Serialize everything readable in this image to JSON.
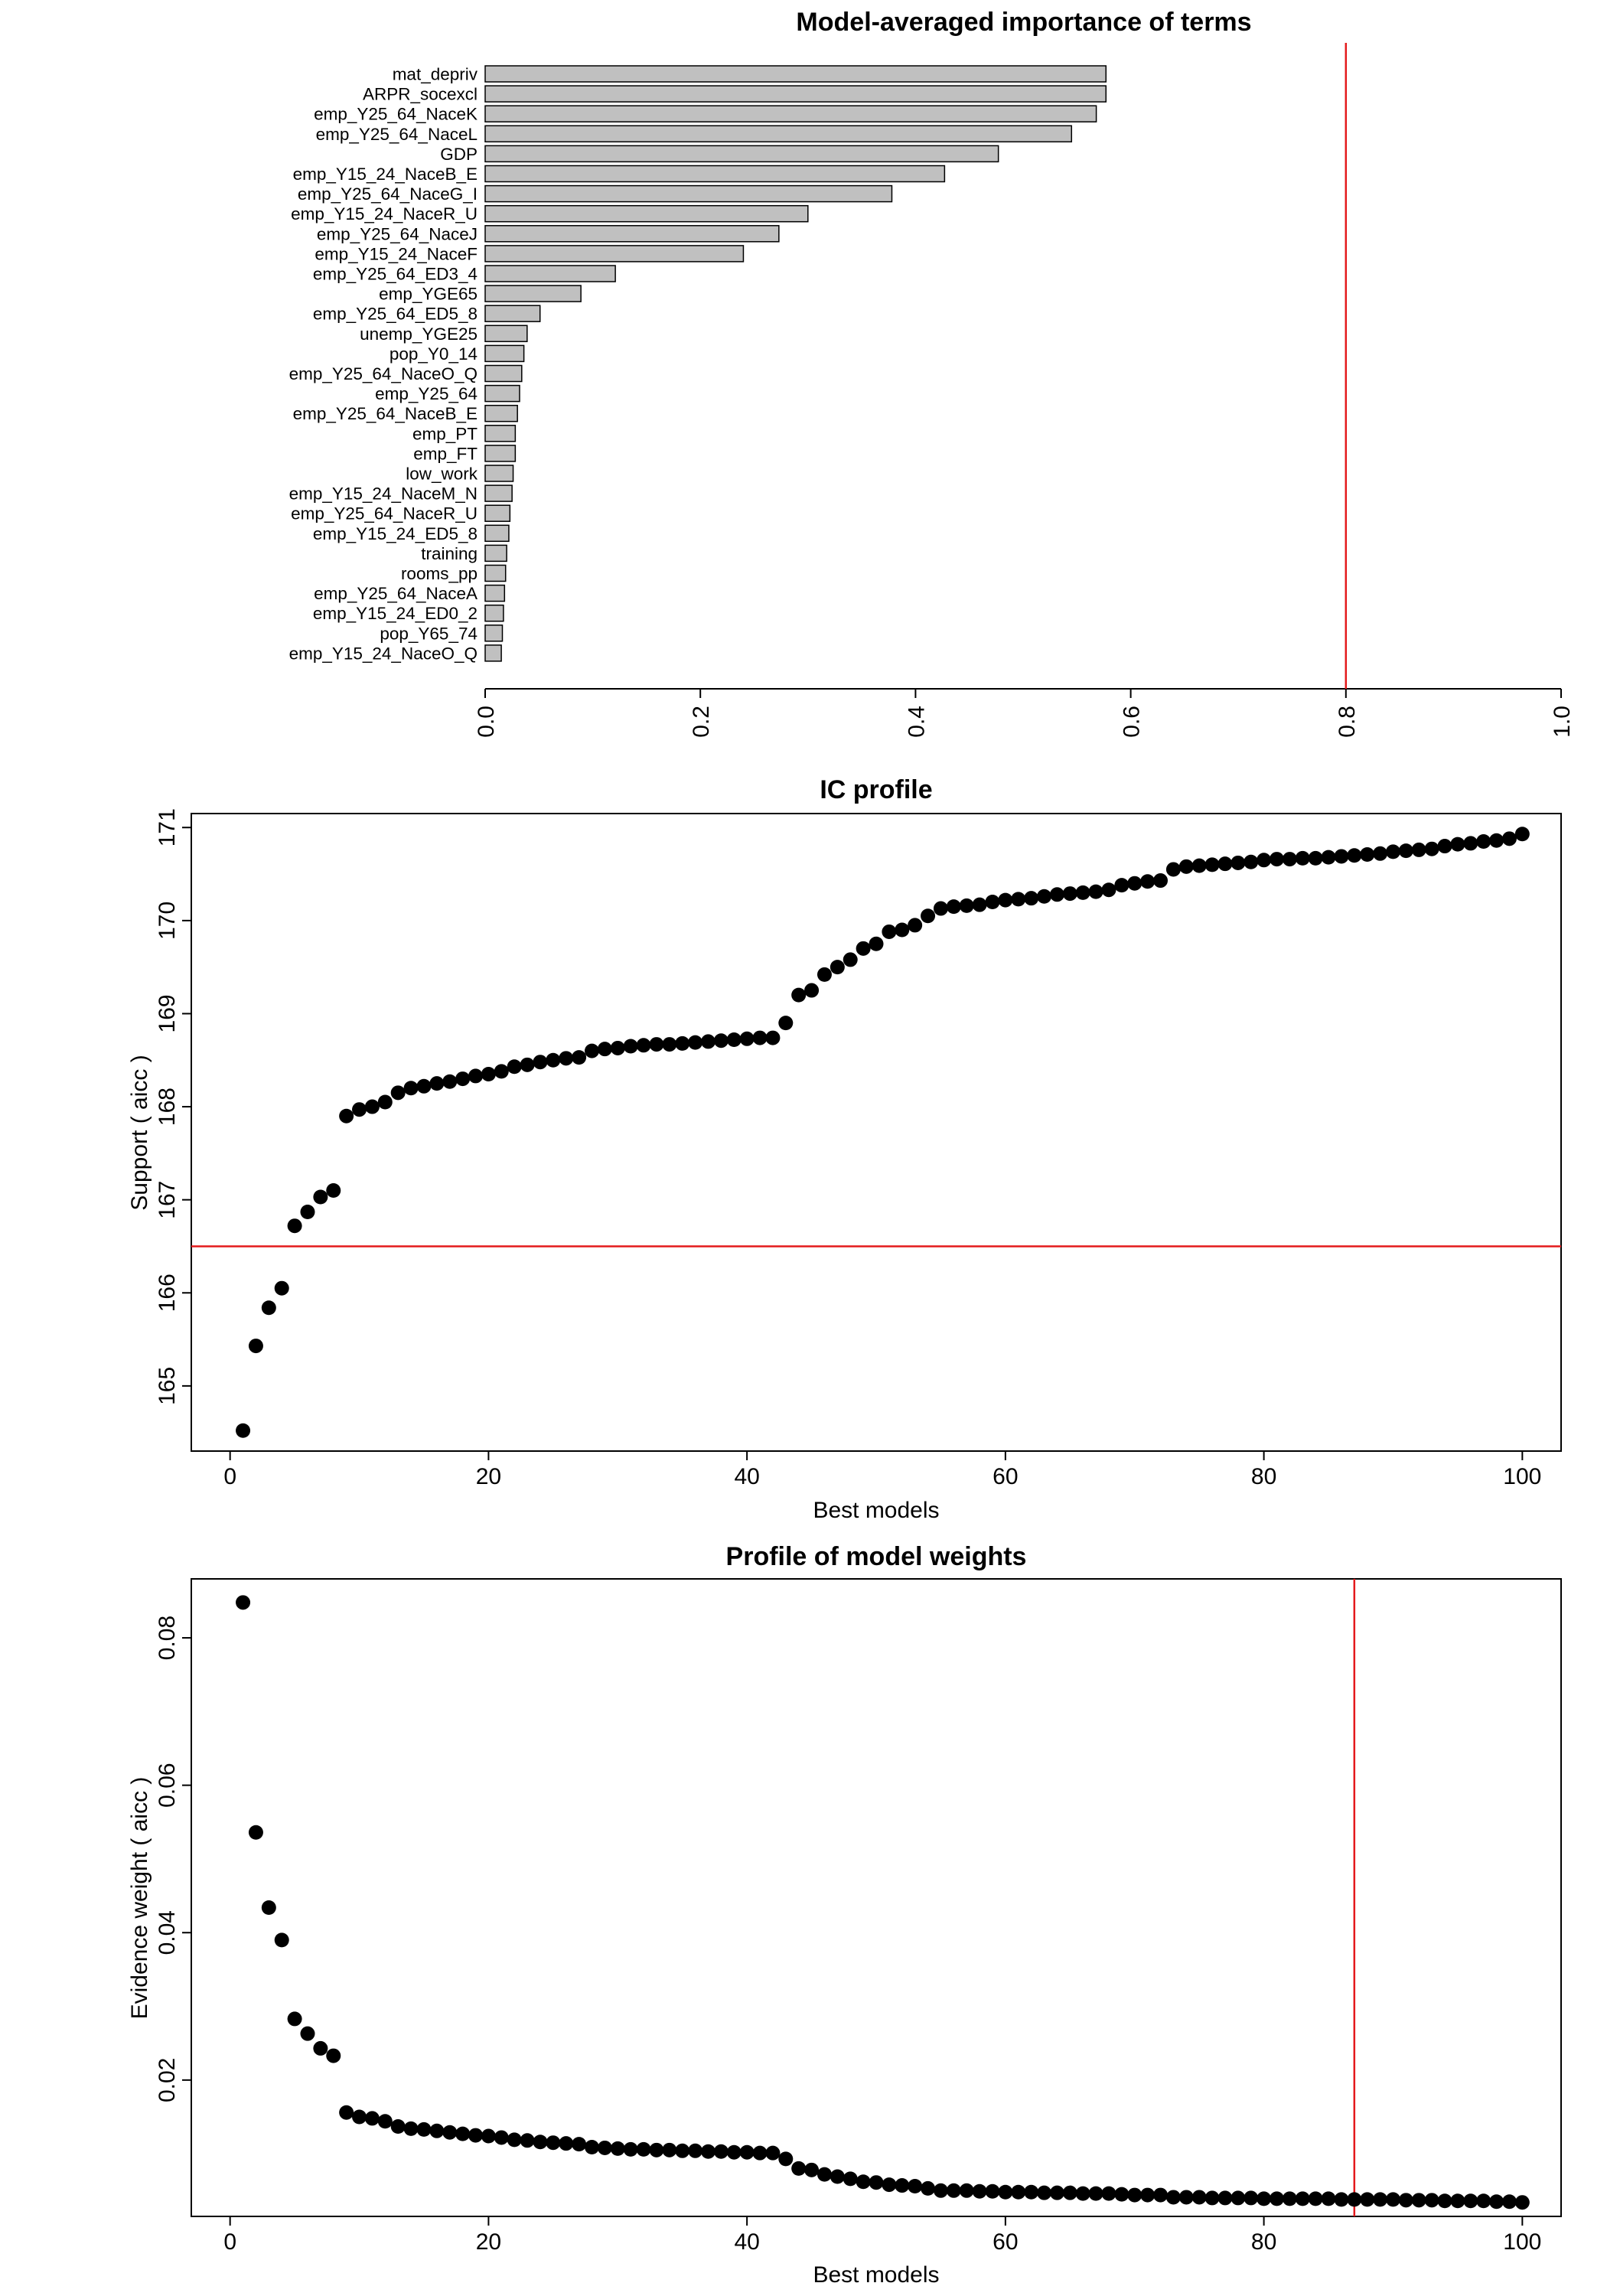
{
  "colors": {
    "bar_fill": "#c0c0c0",
    "point": "#000000",
    "ref_line": "#e41a1c",
    "axis": "#000000"
  },
  "chart_data": [
    {
      "type": "bar",
      "orientation": "horizontal",
      "title": "Model-averaged importance of terms",
      "xlabel": "",
      "ylabel": "",
      "xlim": [
        0,
        1
      ],
      "ticks": [
        "0.0",
        "0.2",
        "0.4",
        "0.6",
        "0.8",
        "1.0"
      ],
      "reference_line": {
        "axis": "x",
        "value": 0.8
      },
      "grid": false,
      "categories": [
        "mat_depriv",
        "ARPR_socexcl",
        "emp_Y25_64_NaceK",
        "emp_Y25_64_NaceL",
        "GDP",
        "emp_Y15_24_NaceB_E",
        "emp_Y25_64_NaceG_I",
        "emp_Y15_24_NaceR_U",
        "emp_Y25_64_NaceJ",
        "emp_Y15_24_NaceF",
        "emp_Y25_64_ED3_4",
        "emp_YGE65",
        "emp_Y25_64_ED5_8",
        "unemp_YGE25",
        "pop_Y0_14",
        "emp_Y25_64_NaceO_Q",
        "emp_Y25_64",
        "emp_Y25_64_NaceB_E",
        "emp_PT",
        "emp_FT",
        "low_work",
        "emp_Y15_24_NaceM_N",
        "emp_Y25_64_NaceR_U",
        "emp_Y15_24_ED5_8",
        "training",
        "rooms_pp",
        "emp_Y25_64_NaceA",
        "emp_Y15_24_ED0_2",
        "pop_Y65_74",
        "emp_Y15_24_NaceO_Q"
      ],
      "values": [
        0.577,
        0.577,
        0.568,
        0.545,
        0.477,
        0.427,
        0.378,
        0.3,
        0.273,
        0.24,
        0.121,
        0.089,
        0.051,
        0.039,
        0.036,
        0.034,
        0.032,
        0.03,
        0.028,
        0.028,
        0.026,
        0.025,
        0.023,
        0.022,
        0.02,
        0.019,
        0.018,
        0.017,
        0.016,
        0.015
      ]
    },
    {
      "type": "scatter",
      "title": "IC profile",
      "xlabel": "Best models",
      "ylabel": "Support ( aicc )",
      "xlim": [
        -3,
        103
      ],
      "ylim": [
        164.3,
        171.15
      ],
      "xticks": [
        0,
        20,
        40,
        60,
        80,
        100
      ],
      "yticks": [
        165,
        166,
        167,
        168,
        169,
        170,
        171
      ],
      "reference_line": {
        "axis": "y",
        "value": 166.5
      },
      "grid": false,
      "x": [
        1,
        2,
        3,
        4,
        5,
        6,
        7,
        8,
        9,
        10,
        11,
        12,
        13,
        14,
        15,
        16,
        17,
        18,
        19,
        20,
        21,
        22,
        23,
        24,
        25,
        26,
        27,
        28,
        29,
        30,
        31,
        32,
        33,
        34,
        35,
        36,
        37,
        38,
        39,
        40,
        41,
        42,
        43,
        44,
        45,
        46,
        47,
        48,
        49,
        50,
        51,
        52,
        53,
        54,
        55,
        56,
        57,
        58,
        59,
        60,
        61,
        62,
        63,
        64,
        65,
        66,
        67,
        68,
        69,
        70,
        71,
        72,
        73,
        74,
        75,
        76,
        77,
        78,
        79,
        80,
        81,
        82,
        83,
        84,
        85,
        86,
        87,
        88,
        89,
        90,
        91,
        92,
        93,
        94,
        95,
        96,
        97,
        98,
        99,
        100
      ],
      "y": [
        164.52,
        165.43,
        165.84,
        166.05,
        166.72,
        166.87,
        167.03,
        167.1,
        167.9,
        167.97,
        168.0,
        168.05,
        168.15,
        168.2,
        168.22,
        168.25,
        168.27,
        168.3,
        168.33,
        168.35,
        168.38,
        168.43,
        168.45,
        168.48,
        168.5,
        168.52,
        168.53,
        168.6,
        168.62,
        168.63,
        168.65,
        168.66,
        168.67,
        168.67,
        168.68,
        168.69,
        168.7,
        168.71,
        168.72,
        168.73,
        168.74,
        168.74,
        168.9,
        169.2,
        169.25,
        169.42,
        169.5,
        169.58,
        169.7,
        169.75,
        169.88,
        169.9,
        169.95,
        170.05,
        170.13,
        170.15,
        170.16,
        170.17,
        170.2,
        170.22,
        170.23,
        170.24,
        170.26,
        170.28,
        170.29,
        170.3,
        170.31,
        170.33,
        170.38,
        170.4,
        170.42,
        170.43,
        170.55,
        170.58,
        170.59,
        170.6,
        170.61,
        170.62,
        170.63,
        170.65,
        170.66,
        170.66,
        170.67,
        170.67,
        170.68,
        170.69,
        170.7,
        170.71,
        170.72,
        170.74,
        170.75,
        170.76,
        170.77,
        170.8,
        170.82,
        170.83,
        170.85,
        170.86,
        170.88,
        170.93
      ]
    },
    {
      "type": "scatter",
      "title": "Profile of model weights",
      "xlabel": "Best models",
      "ylabel": "Evidence weight ( aicc )",
      "xlim": [
        -3,
        103
      ],
      "ylim": [
        0.0015,
        0.088
      ],
      "xticks": [
        0,
        20,
        40,
        60,
        80,
        100
      ],
      "yticks": [
        0.02,
        0.04,
        0.06,
        0.08
      ],
      "reference_line": {
        "axis": "x",
        "value": 87
      },
      "grid": false,
      "x": [
        1,
        2,
        3,
        4,
        5,
        6,
        7,
        8,
        9,
        10,
        11,
        12,
        13,
        14,
        15,
        16,
        17,
        18,
        19,
        20,
        21,
        22,
        23,
        24,
        25,
        26,
        27,
        28,
        29,
        30,
        31,
        32,
        33,
        34,
        35,
        36,
        37,
        38,
        39,
        40,
        41,
        42,
        43,
        44,
        45,
        46,
        47,
        48,
        49,
        50,
        51,
        52,
        53,
        54,
        55,
        56,
        57,
        58,
        59,
        60,
        61,
        62,
        63,
        64,
        65,
        66,
        67,
        68,
        69,
        70,
        71,
        72,
        73,
        74,
        75,
        76,
        77,
        78,
        79,
        80,
        81,
        82,
        83,
        84,
        85,
        86,
        87,
        88,
        89,
        90,
        91,
        92,
        93,
        94,
        95,
        96,
        97,
        98,
        99,
        100
      ],
      "y": [
        0.0848,
        0.0536,
        0.0434,
        0.039,
        0.0283,
        0.0263,
        0.0243,
        0.0233,
        0.0156,
        0.015,
        0.0148,
        0.0144,
        0.0137,
        0.0134,
        0.0133,
        0.0131,
        0.0129,
        0.0127,
        0.0125,
        0.0124,
        0.0122,
        0.0119,
        0.0118,
        0.0116,
        0.0115,
        0.0114,
        0.0113,
        0.0109,
        0.0108,
        0.0107,
        0.0106,
        0.0106,
        0.0105,
        0.0105,
        0.0104,
        0.0104,
        0.0103,
        0.0103,
        0.0102,
        0.0102,
        0.0101,
        0.0101,
        0.0093,
        0.008,
        0.0078,
        0.0072,
        0.0069,
        0.0066,
        0.0062,
        0.0061,
        0.0058,
        0.0057,
        0.0056,
        0.0053,
        0.005,
        0.005,
        0.005,
        0.0049,
        0.0049,
        0.0048,
        0.0048,
        0.0048,
        0.0047,
        0.0047,
        0.0047,
        0.0046,
        0.0046,
        0.0046,
        0.0045,
        0.0044,
        0.0044,
        0.0044,
        0.0041,
        0.0041,
        0.0041,
        0.004,
        0.004,
        0.004,
        0.004,
        0.0039,
        0.0039,
        0.0039,
        0.0039,
        0.0039,
        0.0039,
        0.0038,
        0.0038,
        0.0038,
        0.0038,
        0.0038,
        0.0037,
        0.0037,
        0.0037,
        0.0036,
        0.0036,
        0.0036,
        0.0036,
        0.0035,
        0.0035,
        0.0034
      ]
    }
  ]
}
